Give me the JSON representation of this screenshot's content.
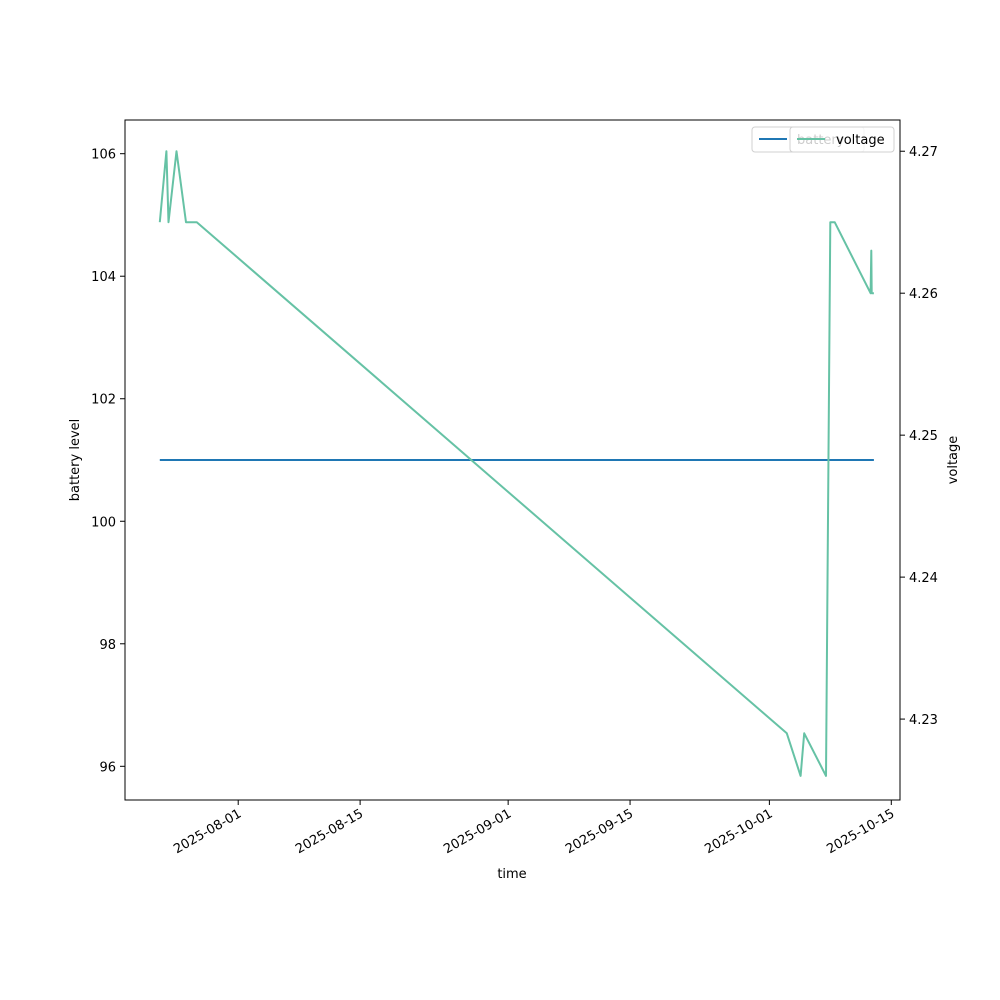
{
  "chart_data": {
    "type": "line",
    "xlabel": "time",
    "ylabel": "battery level",
    "y2label": "voltage",
    "x_ticks": [
      "2025-08-01",
      "2025-08-15",
      "2025-09-01",
      "2025-09-15",
      "2025-10-01",
      "2025-10-15"
    ],
    "y_ticks": [
      "96",
      "98",
      "100",
      "102",
      "104",
      "106"
    ],
    "y2_ticks": [
      "4.23",
      "4.24",
      "4.25",
      "4.26",
      "4.27"
    ],
    "xlim": [
      "2025-07-19",
      "2025-10-16"
    ],
    "ylim": [
      95.45,
      106.55
    ],
    "y2lim": [
      4.2243,
      4.2722
    ],
    "grid": false,
    "legend_placement": "top-right",
    "series": [
      {
        "name": "battery",
        "axis": "left",
        "color": "#1f77b4",
        "points": [
          [
            "2025-07-23",
            101
          ],
          [
            "2025-10-13",
            101
          ]
        ]
      },
      {
        "name": "voltage",
        "axis": "right",
        "color": "#66c2a5",
        "points": [
          [
            "2025-07-23",
            4.265
          ],
          [
            "2025-07-23T18:00",
            4.27
          ],
          [
            "2025-07-24",
            4.265
          ],
          [
            "2025-07-24T22:00",
            4.27
          ],
          [
            "2025-07-26",
            4.265
          ],
          [
            "2025-07-27T06:00",
            4.265
          ],
          [
            "2025-10-03",
            4.229
          ],
          [
            "2025-10-04T14:00",
            4.226
          ],
          [
            "2025-10-05",
            4.229
          ],
          [
            "2025-10-07T12:00",
            4.226
          ],
          [
            "2025-10-08",
            4.265
          ],
          [
            "2025-10-08T12:00",
            4.265
          ],
          [
            "2025-10-12T15:00",
            4.26
          ],
          [
            "2025-10-12T17:00",
            4.263
          ],
          [
            "2025-10-12T18:00",
            4.26
          ],
          [
            "2025-10-13",
            4.26
          ]
        ]
      }
    ]
  }
}
